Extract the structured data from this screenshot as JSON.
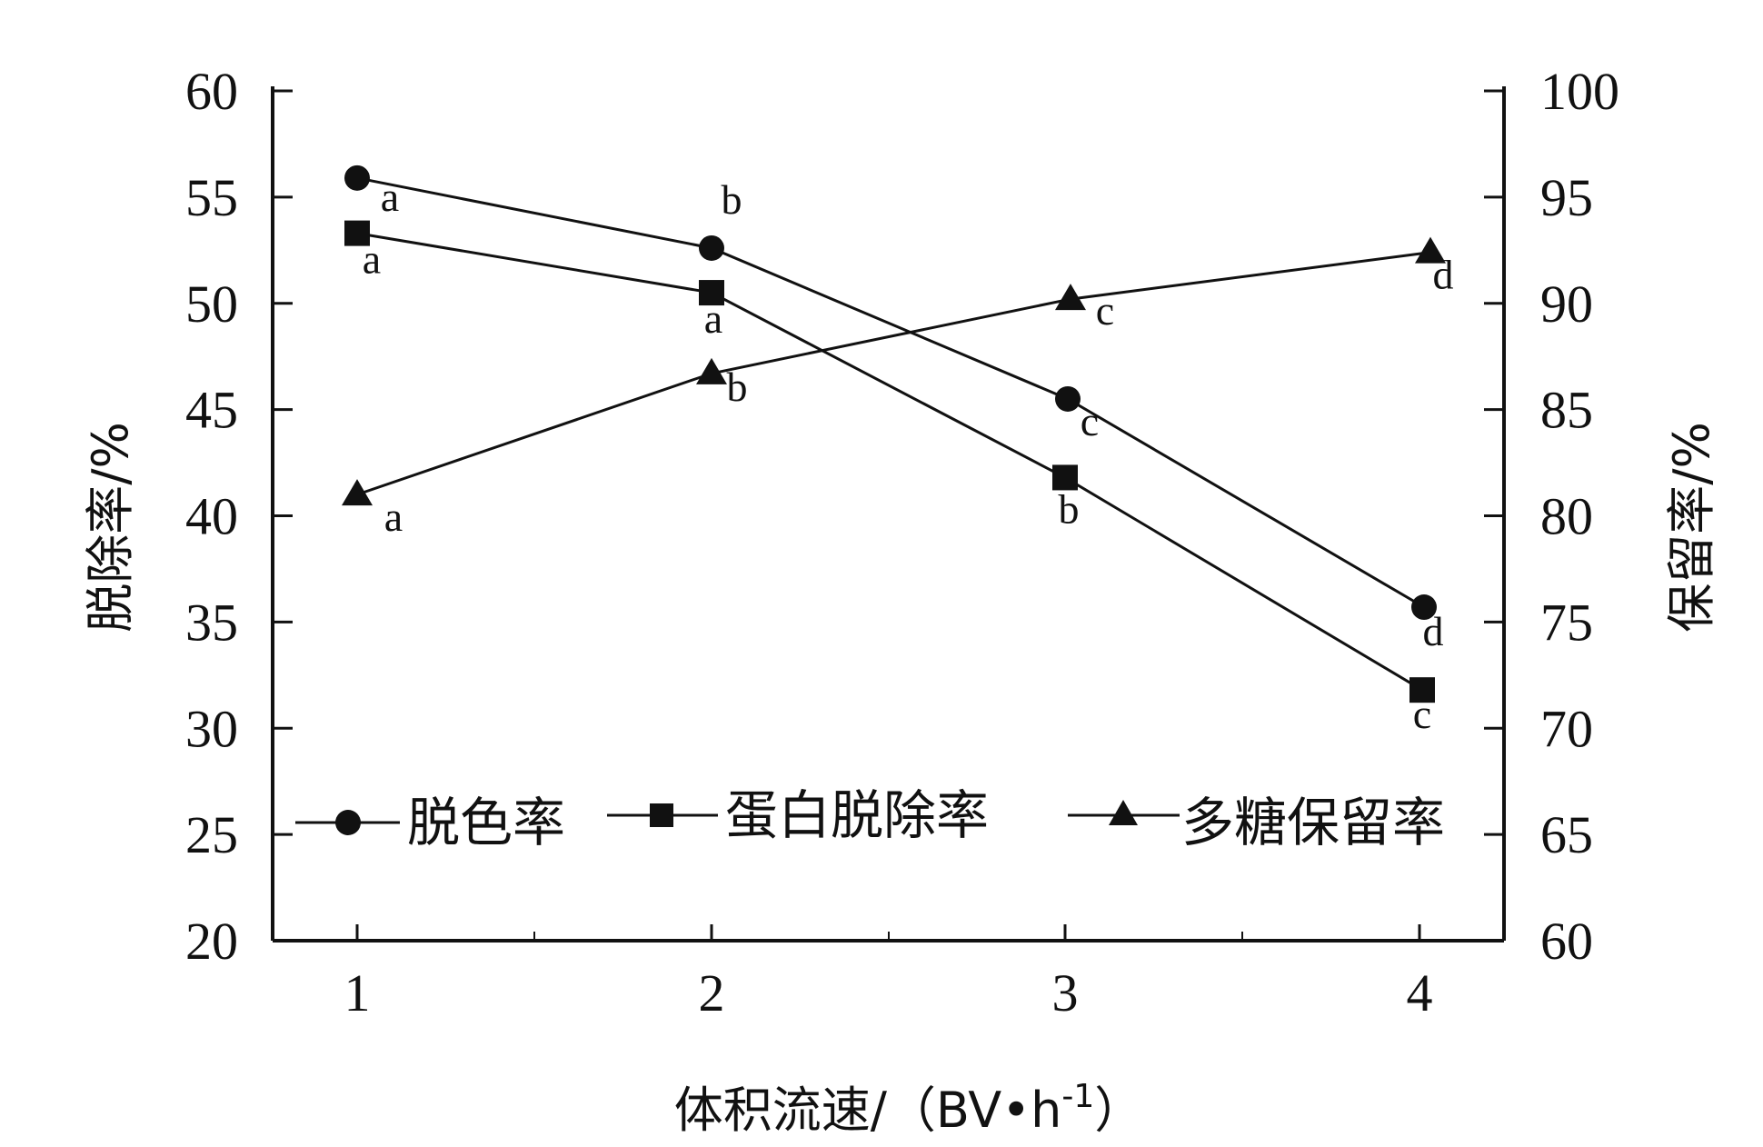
{
  "chart_data": {
    "type": "line",
    "title": "",
    "xlabel": "体积流速/（BV•h",
    "xlabel_sup": "-1",
    "xlabel_close": "）",
    "ylabel_left": "脱除率/%",
    "ylabel_right": "保留率/%",
    "x": [
      1,
      2,
      3,
      4
    ],
    "x_ticks": [
      "1",
      "2",
      "3",
      "4"
    ],
    "ylim_left": [
      20,
      60
    ],
    "ylim_right": [
      60,
      100
    ],
    "y_ticks_left": [
      "20",
      "25",
      "30",
      "35",
      "40",
      "45",
      "50",
      "55",
      "60"
    ],
    "y_ticks_right": [
      "60",
      "65",
      "70",
      "75",
      "80",
      "85",
      "90",
      "95",
      "100"
    ],
    "grid": false,
    "legend_position": "lower-middle",
    "series": [
      {
        "name": "脱色率",
        "axis": "left",
        "marker": "circle",
        "values": [
          55.9,
          52.6,
          45.5,
          35.7
        ],
        "sig": [
          "a",
          "b",
          "c",
          "d"
        ]
      },
      {
        "name": "蛋白脱除率",
        "axis": "left",
        "marker": "square",
        "values": [
          53.3,
          50.5,
          41.8,
          31.8
        ],
        "sig": [
          "a",
          "a",
          "b",
          "c"
        ]
      },
      {
        "name": "多糖保留率",
        "axis": "right",
        "marker": "triangle",
        "values": [
          81.0,
          86.7,
          90.2,
          92.4
        ],
        "sig": [
          "a",
          "b",
          "c",
          "d"
        ]
      }
    ],
    "colors": {
      "line": "#111111",
      "marker": "#111111"
    }
  }
}
